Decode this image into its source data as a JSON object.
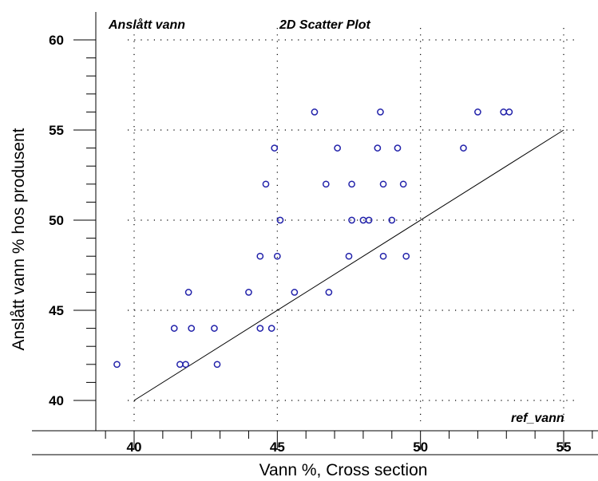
{
  "chart_data": {
    "type": "scatter",
    "title": "2D Scatter Plot",
    "subtitle": "Anslått vann",
    "xlabel": "Vann %, Cross section",
    "ylabel": "Anslått vann % hos produsent",
    "reference_label": "ref_vann",
    "xlim": [
      38.5,
      56
    ],
    "ylim": [
      38.5,
      61
    ],
    "x_ticks": [
      40,
      45,
      50,
      55
    ],
    "y_ticks": [
      40,
      45,
      50,
      55,
      60
    ],
    "grid": true,
    "marker_color": "#2222aa",
    "reference_line": {
      "x": [
        40,
        55
      ],
      "y": [
        40,
        55
      ]
    },
    "points": [
      {
        "x": 39.4,
        "y": 42
      },
      {
        "x": 41.4,
        "y": 44
      },
      {
        "x": 41.6,
        "y": 42
      },
      {
        "x": 41.8,
        "y": 42
      },
      {
        "x": 41.9,
        "y": 46
      },
      {
        "x": 42.0,
        "y": 44
      },
      {
        "x": 42.8,
        "y": 44
      },
      {
        "x": 42.9,
        "y": 42
      },
      {
        "x": 44.0,
        "y": 46
      },
      {
        "x": 44.4,
        "y": 44
      },
      {
        "x": 44.4,
        "y": 48
      },
      {
        "x": 44.6,
        "y": 52
      },
      {
        "x": 44.8,
        "y": 44
      },
      {
        "x": 44.9,
        "y": 54
      },
      {
        "x": 45.0,
        "y": 48
      },
      {
        "x": 45.1,
        "y": 50
      },
      {
        "x": 45.6,
        "y": 46
      },
      {
        "x": 46.3,
        "y": 56
      },
      {
        "x": 46.7,
        "y": 52
      },
      {
        "x": 46.8,
        "y": 46
      },
      {
        "x": 47.1,
        "y": 54
      },
      {
        "x": 47.5,
        "y": 48
      },
      {
        "x": 47.6,
        "y": 52
      },
      {
        "x": 47.6,
        "y": 50
      },
      {
        "x": 48.0,
        "y": 50
      },
      {
        "x": 48.2,
        "y": 50
      },
      {
        "x": 48.5,
        "y": 54
      },
      {
        "x": 48.6,
        "y": 56
      },
      {
        "x": 48.7,
        "y": 52
      },
      {
        "x": 48.7,
        "y": 48
      },
      {
        "x": 49.0,
        "y": 50
      },
      {
        "x": 49.2,
        "y": 54
      },
      {
        "x": 49.4,
        "y": 52
      },
      {
        "x": 49.5,
        "y": 48
      },
      {
        "x": 51.5,
        "y": 54
      },
      {
        "x": 52.0,
        "y": 56
      },
      {
        "x": 52.9,
        "y": 56
      },
      {
        "x": 53.1,
        "y": 56
      }
    ]
  }
}
